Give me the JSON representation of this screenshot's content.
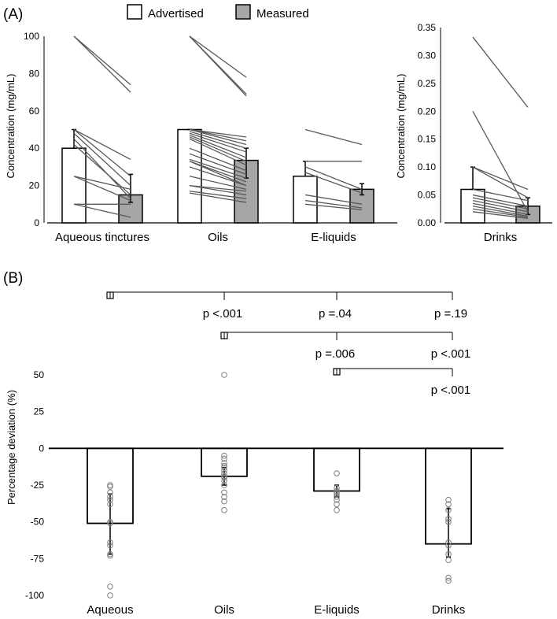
{
  "panels": {
    "a": "(A)",
    "b": "(B)"
  },
  "legend": [
    {
      "label": "Advertised",
      "fill": "#ffffff"
    },
    {
      "label": "Measured",
      "fill": "#a6a6a6"
    }
  ],
  "colors": {
    "measured": "#a6a6a6",
    "advertised": "#ffffff",
    "lines": "#595959",
    "markers": "#7f7f7f"
  },
  "chart_data": [
    {
      "type": "bar",
      "panel": "(A)",
      "ylabel": "Concentration (mg/mL)",
      "ylim": [
        0,
        100
      ],
      "yticks": [
        "0",
        "20",
        "40",
        "60",
        "80",
        "100"
      ],
      "categories": [
        "Aqueous tinctures",
        "Oils",
        "E-liquids"
      ],
      "series": [
        {
          "name": "Advertised",
          "values": [
            40,
            50,
            25
          ],
          "error_upper": [
            50,
            50,
            33
          ]
        },
        {
          "name": "Measured",
          "values": [
            15,
            33.5,
            18
          ],
          "error_upper": [
            26,
            40,
            21
          ],
          "error_lower": [
            11,
            24,
            15
          ]
        }
      ],
      "paired_samples": [
        [
          [
            100,
            74
          ],
          [
            100,
            70
          ],
          [
            50,
            34
          ],
          [
            50,
            25
          ],
          [
            48,
            20
          ],
          [
            45,
            13
          ],
          [
            42,
            15
          ],
          [
            25,
            18
          ],
          [
            25,
            12
          ],
          [
            10,
            3
          ],
          [
            10,
            10
          ]
        ],
        [
          [
            100,
            78
          ],
          [
            100,
            69
          ],
          [
            100,
            68
          ],
          [
            50,
            46
          ],
          [
            50,
            44
          ],
          [
            50,
            42
          ],
          [
            49,
            40
          ],
          [
            48,
            38
          ],
          [
            47,
            35
          ],
          [
            46,
            33
          ],
          [
            45,
            31
          ],
          [
            40,
            28
          ],
          [
            37,
            26
          ],
          [
            34,
            24
          ],
          [
            33,
            22
          ],
          [
            33,
            20
          ],
          [
            30,
            20
          ],
          [
            25,
            18
          ],
          [
            20,
            17
          ],
          [
            20,
            15
          ],
          [
            17,
            13
          ],
          [
            16,
            11
          ]
        ],
        [
          [
            50,
            42
          ],
          [
            33,
            33
          ],
          [
            30,
            18
          ],
          [
            27,
            16
          ],
          [
            15,
            10
          ],
          [
            12,
            8
          ],
          [
            10,
            7
          ]
        ]
      ]
    },
    {
      "type": "bar",
      "panel": "(A)",
      "ylabel": "Concentration (mg/mL)",
      "ylim": [
        0,
        0.35
      ],
      "yticks": [
        "0.00",
        "0.05",
        "0.10",
        "0.15",
        "0.20",
        "0.25",
        "0.30",
        "0.35"
      ],
      "categories": [
        "Drinks"
      ],
      "series": [
        {
          "name": "Advertised",
          "values": [
            0.06
          ],
          "error_upper": [
            0.1
          ]
        },
        {
          "name": "Measured",
          "values": [
            0.03
          ],
          "error_upper": [
            0.045
          ],
          "error_lower": [
            0.015
          ]
        }
      ],
      "paired_samples": [
        [
          [
            0.333,
            0.207
          ],
          [
            0.2,
            0.02
          ],
          [
            0.1,
            0.06
          ],
          [
            0.1,
            0.045
          ],
          [
            0.06,
            0.04
          ],
          [
            0.05,
            0.03
          ],
          [
            0.045,
            0.025
          ],
          [
            0.04,
            0.02
          ],
          [
            0.035,
            0.015
          ],
          [
            0.03,
            0.012
          ],
          [
            0.025,
            0.01
          ],
          [
            0.02,
            0.008
          ]
        ]
      ]
    },
    {
      "type": "bar",
      "panel": "(B)",
      "ylabel": "Percentage deviation (%)",
      "ylim": [
        -100,
        50
      ],
      "yticks": [
        "-100",
        "-75",
        "-50",
        "-25",
        "0",
        "25",
        "50"
      ],
      "categories": [
        "Aqueous",
        "Oils",
        "E-liquids",
        "Drinks"
      ],
      "values": [
        -51,
        -19,
        -29,
        -65
      ],
      "error": [
        [
          -72,
          -31
        ],
        [
          -25,
          -13
        ],
        [
          -33,
          -25
        ],
        [
          -74,
          -41
        ]
      ],
      "points": [
        [
          -25,
          -26,
          -30,
          -33,
          -35,
          -38,
          -50,
          -51,
          -64,
          -66,
          -72,
          -73,
          -94,
          -100
        ],
        [
          50,
          -5,
          -7,
          -10,
          -12,
          -13,
          -15,
          -17,
          -19,
          -20,
          -22,
          -25,
          -30,
          -33,
          -36,
          -42
        ],
        [
          -17,
          -27,
          -29,
          -30,
          -31,
          -33,
          -35,
          -38,
          -42
        ],
        [
          -35,
          -38,
          -42,
          -48,
          -50,
          -64,
          -66,
          -72,
          -76,
          -88,
          -90
        ]
      ],
      "comparisons": [
        {
          "reference": "Aqueous",
          "targets": [
            {
              "category": "Oils",
              "label": "p <.001"
            },
            {
              "category": "E-liquids",
              "label": "p =.04"
            },
            {
              "category": "Drinks",
              "label": "p =.19"
            }
          ]
        },
        {
          "reference": "Oils",
          "targets": [
            {
              "category": "E-liquids",
              "label": "p =.006"
            },
            {
              "category": "Drinks",
              "label": "p <.001"
            }
          ]
        },
        {
          "reference": "E-liquids",
          "targets": [
            {
              "category": "Drinks",
              "label": "p <.001"
            }
          ]
        }
      ]
    }
  ]
}
